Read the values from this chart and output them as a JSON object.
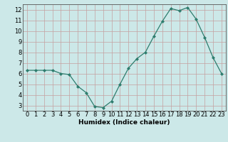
{
  "x": [
    0,
    1,
    2,
    3,
    4,
    5,
    6,
    7,
    8,
    9,
    10,
    11,
    12,
    13,
    14,
    15,
    16,
    17,
    18,
    19,
    20,
    21,
    22,
    23
  ],
  "y": [
    6.3,
    6.3,
    6.3,
    6.3,
    6.0,
    5.9,
    4.8,
    4.2,
    2.9,
    2.8,
    3.4,
    5.0,
    6.5,
    7.4,
    8.0,
    9.5,
    10.9,
    12.1,
    11.9,
    12.2,
    11.1,
    9.4,
    7.5,
    6.0
  ],
  "line_color": "#2e7d6e",
  "marker": "D",
  "marker_size": 2.0,
  "bg_color": "#cce8e8",
  "grid_color": "#c4a0a0",
  "xlabel": "Humidex (Indice chaleur)",
  "xlim": [
    -0.5,
    23.5
  ],
  "ylim": [
    2.5,
    12.5
  ],
  "yticks": [
    3,
    4,
    5,
    6,
    7,
    8,
    9,
    10,
    11,
    12
  ],
  "xticks": [
    0,
    1,
    2,
    3,
    4,
    5,
    6,
    7,
    8,
    9,
    10,
    11,
    12,
    13,
    14,
    15,
    16,
    17,
    18,
    19,
    20,
    21,
    22,
    23
  ],
  "label_fontsize": 6.5,
  "tick_fontsize": 6.0
}
